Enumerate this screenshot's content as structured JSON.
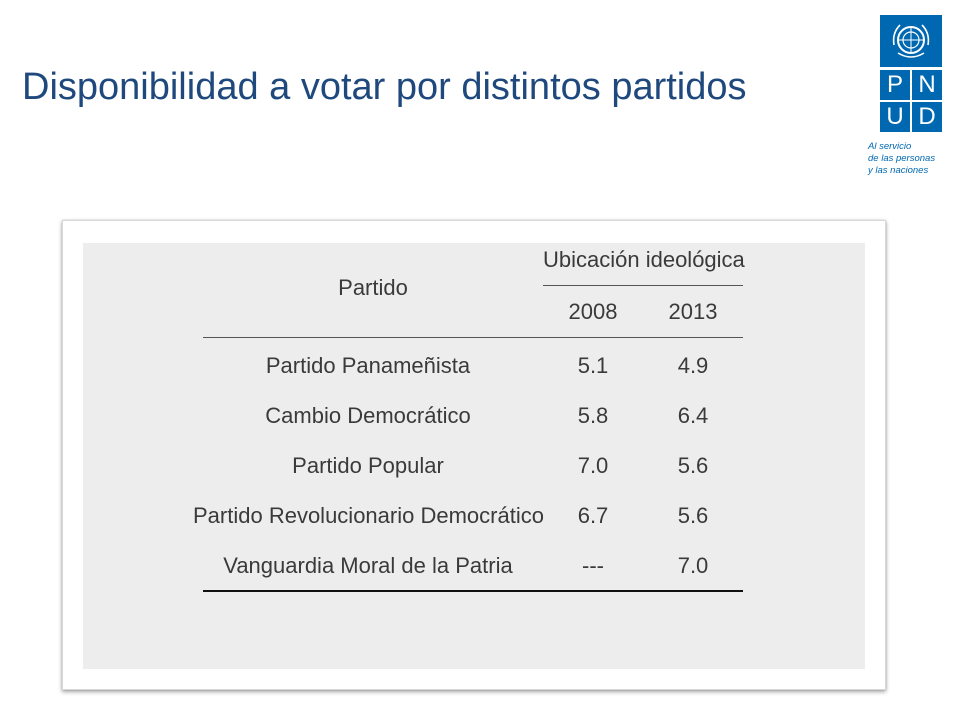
{
  "slide": {
    "title": "Disponibilidad a votar por distintos partidos"
  },
  "logo": {
    "letters": [
      "P",
      "N",
      "U",
      "D"
    ],
    "tagline": [
      "Al servicio",
      "de las personas",
      "y las naciones"
    ],
    "color": "#0068b1",
    "icon": "un-emblem-icon"
  },
  "table": {
    "header_party": "Partido",
    "header_group": "Ubicación ideológica",
    "years": [
      "2008",
      "2013"
    ],
    "rows": [
      {
        "party": "Partido Panameñista",
        "v2008": "5.1",
        "v2013": "4.9"
      },
      {
        "party": "Cambio Democrático",
        "v2008": "5.8",
        "v2013": "6.4"
      },
      {
        "party": "Partido Popular",
        "v2008": "7.0",
        "v2013": "5.6"
      },
      {
        "party": "Partido Revolucionario Democrático",
        "v2008": "6.7",
        "v2013": "5.6"
      },
      {
        "party": "Vanguardia Moral de la Patria",
        "v2008": "---",
        "v2013": "7.0"
      }
    ]
  },
  "colors": {
    "title": "#1f497d",
    "panel_background": "#ededed",
    "table_text": "#3a3a3a"
  }
}
